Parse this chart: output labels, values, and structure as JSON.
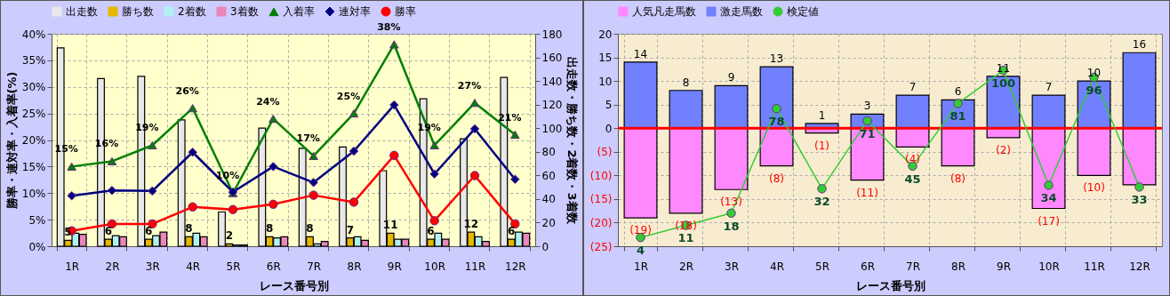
{
  "chart_data": [
    {
      "type": "bar",
      "categories": [
        "1R",
        "2R",
        "3R",
        "4R",
        "5R",
        "6R",
        "7R",
        "8R",
        "9R",
        "10R",
        "11R",
        "12R"
      ],
      "xlabel": "レース番号別",
      "ylabel": "勝率・連対率・入着率(%)",
      "y2label": "出走数・勝ち数・2着数・3着数",
      "ylim": [
        0,
        40
      ],
      "yticks": [
        {
          "value": 0,
          "label": "0%"
        },
        {
          "value": 5,
          "label": "5%"
        },
        {
          "value": 10,
          "label": "10%"
        },
        {
          "value": 15,
          "label": "15%"
        },
        {
          "value": 20,
          "label": "20%"
        },
        {
          "value": 25,
          "label": "25%"
        },
        {
          "value": 30,
          "label": "30%"
        },
        {
          "value": 35,
          "label": "35%"
        },
        {
          "value": 40,
          "label": "40%"
        }
      ],
      "y2lim": [
        0,
        180
      ],
      "y2ticks": [
        0,
        20,
        40,
        60,
        80,
        100,
        120,
        140,
        160,
        180
      ],
      "grid": true,
      "legend": "top",
      "series": [
        {
          "name": "出走数",
          "color": "#e8e8e8",
          "axis": "y2",
          "values": [
            168,
            142,
            144,
            107,
            29,
            100,
            83,
            84,
            64,
            125,
            91,
            143
          ]
        },
        {
          "name": "勝ち数",
          "color": "#e6b800",
          "axis": "y2",
          "values": [
            5,
            6,
            6,
            8,
            2,
            8,
            8,
            7,
            11,
            6,
            12,
            6
          ],
          "value_labels": [
            "5",
            "6",
            "6",
            "8",
            "2",
            "8",
            "8",
            "7",
            "11",
            "6",
            "12",
            "6"
          ]
        },
        {
          "name": "2着数",
          "color": "#b3f0f0",
          "axis": "y2",
          "values": [
            11,
            9,
            9,
            11,
            1,
            7,
            2,
            8,
            6,
            11,
            8,
            12
          ]
        },
        {
          "name": "3着数",
          "color": "#e888b8",
          "axis": "y2",
          "values": [
            10,
            8,
            12,
            8,
            1,
            8,
            4,
            5,
            6,
            6,
            4,
            11
          ]
        },
        {
          "name": "入着率",
          "type": "line",
          "color": "#008000",
          "marker": "triangle",
          "values": [
            15,
            16,
            19,
            26,
            10,
            24,
            17,
            25,
            38,
            19,
            27,
            21
          ],
          "value_labels": [
            "15%",
            "16%",
            "19%",
            "26%",
            "10%",
            "24%",
            "17%",
            "25%",
            "38%",
            "19%",
            "27%",
            "21%"
          ]
        },
        {
          "name": "連対率",
          "type": "line",
          "color": "#000080",
          "marker": "diamond",
          "values": [
            9.5,
            10.5,
            10.4,
            17.7,
            10.2,
            15.0,
            12.0,
            17.9,
            26.6,
            13.6,
            22.1,
            12.6
          ]
        },
        {
          "name": "勝率",
          "type": "line",
          "color": "#ff0000",
          "marker": "circle",
          "values": [
            2.9,
            4.2,
            4.2,
            7.4,
            6.9,
            7.9,
            9.6,
            8.3,
            17.1,
            4.8,
            13.3,
            4.2
          ]
        }
      ]
    },
    {
      "type": "bar",
      "stacked": true,
      "categories": [
        "1R",
        "2R",
        "3R",
        "4R",
        "5R",
        "6R",
        "7R",
        "8R",
        "9R",
        "10R",
        "11R",
        "12R"
      ],
      "xlabel": "レース番号別",
      "ylim": [
        -25,
        20
      ],
      "yticks": [
        {
          "value": -25,
          "label": "(25)"
        },
        {
          "value": -20,
          "label": "(20)"
        },
        {
          "value": -15,
          "label": "(15)"
        },
        {
          "value": -10,
          "label": "(10)"
        },
        {
          "value": -5,
          "label": "(5)"
        },
        0,
        5,
        10,
        15,
        20
      ],
      "y2lim": [
        -1,
        121
      ],
      "grid": true,
      "legend": "top",
      "ref_lines": [
        {
          "axis": "y",
          "value": 0,
          "color": "#ff0000"
        }
      ],
      "series": [
        {
          "name": "人気凡走馬数",
          "color": "#ff88ff",
          "values": [
            -19,
            -18,
            -13,
            -8,
            -1,
            -11,
            -4,
            -8,
            -2,
            -17,
            -10,
            -12
          ],
          "value_labels": [
            "(19)",
            "(18)",
            "(13)",
            "(8)",
            "(1)",
            "(11)",
            "(4)",
            "(8)",
            "(2)",
            "(17)",
            "(10)",
            null
          ]
        },
        {
          "name": "激走馬数",
          "color": "#7080ff",
          "values": [
            14,
            8,
            9,
            13,
            1,
            3,
            7,
            6,
            11,
            7,
            10,
            16
          ],
          "value_labels": [
            "14",
            "8",
            "9",
            "13",
            "1",
            "3",
            "7",
            "6",
            "11",
            "7",
            "10",
            "16"
          ]
        },
        {
          "name": "検定値",
          "type": "line",
          "axis": "y2",
          "color": "#33cc33",
          "marker": "circle",
          "values": [
            4,
            11,
            18,
            78,
            32,
            71,
            45,
            81,
            100,
            34,
            96,
            33
          ],
          "value_labels": [
            "4",
            "11",
            "18",
            "78",
            "32",
            "71",
            "45",
            "81",
            "100",
            "34",
            "96",
            "33"
          ]
        }
      ]
    }
  ]
}
